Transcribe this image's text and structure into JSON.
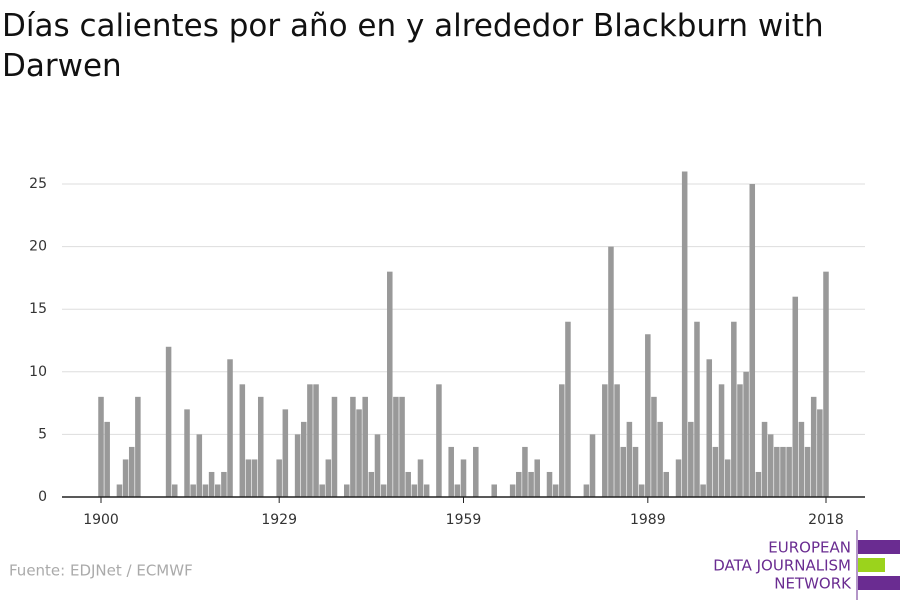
{
  "chart_data": {
    "type": "bar",
    "title": "Días calientes por año en y alrededor Blackburn with Darwen",
    "source": "Fuente: EDJNet / ECMWF",
    "logo": [
      "EUROPEAN",
      "DATA JOURNALISM",
      "NETWORK"
    ],
    "color": "#999999",
    "x": [
      1900,
      1901,
      1902,
      1903,
      1904,
      1905,
      1906,
      1907,
      1908,
      1909,
      1910,
      1911,
      1912,
      1913,
      1914,
      1915,
      1916,
      1917,
      1918,
      1919,
      1920,
      1921,
      1922,
      1923,
      1924,
      1925,
      1926,
      1927,
      1928,
      1929,
      1930,
      1931,
      1932,
      1933,
      1934,
      1935,
      1936,
      1937,
      1938,
      1939,
      1940,
      1941,
      1942,
      1943,
      1944,
      1945,
      1946,
      1947,
      1948,
      1949,
      1950,
      1951,
      1952,
      1953,
      1954,
      1955,
      1956,
      1957,
      1958,
      1959,
      1960,
      1961,
      1962,
      1963,
      1964,
      1965,
      1966,
      1967,
      1968,
      1969,
      1970,
      1971,
      1972,
      1973,
      1974,
      1975,
      1976,
      1977,
      1978,
      1979,
      1980,
      1981,
      1982,
      1983,
      1984,
      1985,
      1986,
      1987,
      1988,
      1989,
      1990,
      1991,
      1992,
      1993,
      1994,
      1995,
      1996,
      1997,
      1998,
      1999,
      2000,
      2001,
      2002,
      2003,
      2004,
      2005,
      2006,
      2007,
      2008,
      2009,
      2010,
      2011,
      2012,
      2013,
      2014,
      2015,
      2016,
      2017,
      2018
    ],
    "values": [
      8,
      6,
      0,
      1,
      3,
      4,
      8,
      0,
      0,
      0,
      0,
      12,
      1,
      0,
      7,
      1,
      5,
      1,
      2,
      1,
      2,
      11,
      0,
      9,
      3,
      3,
      8,
      0,
      0,
      3,
      7,
      0,
      5,
      6,
      9,
      9,
      1,
      3,
      8,
      0,
      1,
      8,
      7,
      8,
      2,
      5,
      1,
      18,
      8,
      8,
      2,
      1,
      3,
      1,
      0,
      9,
      0,
      4,
      1,
      3,
      0,
      4,
      0,
      0,
      1,
      0,
      0,
      1,
      2,
      4,
      2,
      3,
      0,
      2,
      1,
      9,
      14,
      0,
      0,
      1,
      5,
      0,
      9,
      20,
      9,
      4,
      6,
      4,
      1,
      13,
      8,
      6,
      2,
      0,
      3,
      26,
      6,
      14,
      1,
      11,
      4,
      9,
      3,
      14,
      9,
      10,
      25,
      2,
      6,
      5,
      4,
      4,
      4,
      16,
      6,
      4,
      8,
      7,
      18
    ],
    "xlim": [
      1893.65,
      2024.35
    ],
    "xticks": [
      1900,
      1929,
      1959,
      1989,
      2018
    ],
    "ylim": [
      0,
      26
    ],
    "yticks": [
      0,
      5,
      10,
      15,
      20,
      25
    ],
    "grid": true
  }
}
